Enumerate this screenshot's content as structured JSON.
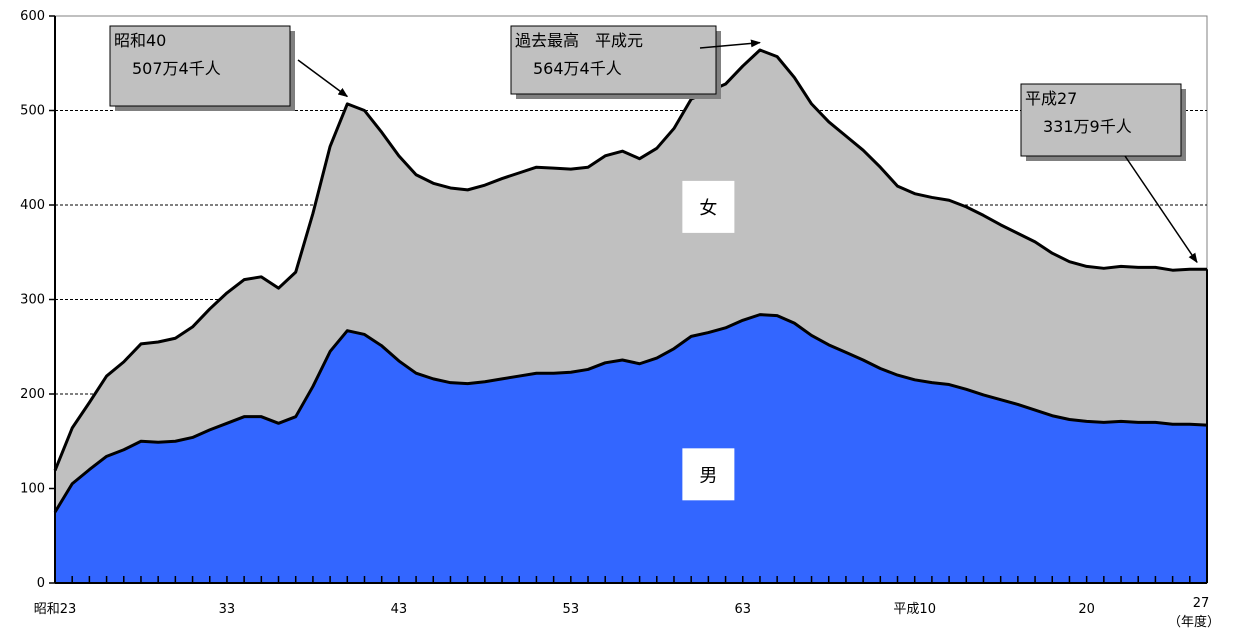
{
  "chart_data": {
    "type": "area",
    "stacked": true,
    "title": "",
    "xlabel": "（年度）",
    "ylabel": "",
    "ylim": [
      0,
      600
    ],
    "y_ticks": [
      0,
      100,
      200,
      300,
      400,
      500,
      600
    ],
    "grid": "horizontal dashed",
    "x_tick_labels": [
      {
        "year": 1948,
        "label": "昭和23"
      },
      {
        "year": 1958,
        "label": "33"
      },
      {
        "year": 1968,
        "label": "43"
      },
      {
        "year": 1978,
        "label": "53"
      },
      {
        "year": 1988,
        "label": "63"
      },
      {
        "year": 1998,
        "label": "平成10"
      },
      {
        "year": 2008,
        "label": "20"
      },
      {
        "year": 2015,
        "label": "27"
      }
    ],
    "x": [
      1948,
      1949,
      1950,
      1951,
      1952,
      1953,
      1954,
      1955,
      1956,
      1957,
      1958,
      1959,
      1960,
      1961,
      1962,
      1963,
      1964,
      1965,
      1966,
      1967,
      1968,
      1969,
      1970,
      1971,
      1972,
      1973,
      1974,
      1975,
      1976,
      1977,
      1978,
      1979,
      1980,
      1981,
      1982,
      1983,
      1984,
      1985,
      1986,
      1987,
      1988,
      1989,
      1990,
      1991,
      1992,
      1993,
      1994,
      1995,
      1996,
      1997,
      1998,
      1999,
      2000,
      2001,
      2002,
      2003,
      2004,
      2005,
      2006,
      2007,
      2008,
      2009,
      2010,
      2011,
      2012,
      2013,
      2014,
      2015
    ],
    "series": [
      {
        "name": "男",
        "color": "#3366ff",
        "values": [
          75,
          105,
          120,
          134,
          141,
          150,
          149,
          150,
          154,
          162,
          169,
          176,
          176,
          169,
          176,
          208,
          245,
          267,
          263,
          251,
          235,
          222,
          216,
          212,
          211,
          213,
          216,
          219,
          222,
          222,
          223,
          226,
          233,
          236,
          232,
          238,
          248,
          261,
          265,
          270,
          278,
          284,
          283,
          275,
          262,
          252,
          244,
          236,
          227,
          220,
          215,
          212,
          210,
          205,
          199,
          194,
          189,
          183,
          177,
          173,
          171,
          170,
          171,
          170,
          170,
          168,
          168,
          167
        ]
      },
      {
        "name": "女",
        "color": "#c0c0c0",
        "values": [
          44,
          59,
          71,
          85,
          93,
          103,
          106,
          109,
          117,
          128,
          138,
          145,
          148,
          143,
          153,
          183,
          217,
          240,
          237,
          226,
          217,
          210,
          207,
          206,
          205,
          208,
          212,
          215,
          218,
          217,
          215,
          214,
          219,
          221,
          217,
          222,
          233,
          251,
          255,
          258,
          269,
          280,
          274,
          260,
          245,
          236,
          229,
          222,
          213,
          200,
          197,
          196,
          195,
          193,
          190,
          185,
          181,
          178,
          172,
          167,
          164,
          163,
          164,
          164,
          164,
          163,
          164,
          165
        ]
      }
    ],
    "total_values": [
      119,
      164,
      191,
      219,
      234,
      253,
      255,
      259,
      271,
      290,
      307,
      321,
      324,
      312,
      329,
      391,
      462,
      507,
      500,
      477,
      452,
      432,
      423,
      418,
      416,
      421,
      428,
      434,
      440,
      439,
      438,
      440,
      452,
      457,
      449,
      460,
      481,
      512,
      520,
      528,
      547,
      564,
      557,
      535,
      507,
      488,
      473,
      458,
      440,
      420,
      412,
      408,
      405,
      398,
      389,
      379,
      370,
      361,
      349,
      340,
      335,
      333,
      335,
      334,
      334,
      331,
      332,
      332
    ],
    "annotations": [
      {
        "id": "peak-1965",
        "year": 1965,
        "value": 507.4,
        "line1": "昭和40",
        "line2": "507万4千人"
      },
      {
        "id": "peak-1989",
        "year": 1989,
        "value": 564.4,
        "line1": "過去最高　平成元",
        "line2": "564万4千人"
      },
      {
        "id": "latest-2015",
        "year": 2015,
        "value": 331.9,
        "line1": "平成27",
        "line2": "331万9千人"
      }
    ]
  }
}
